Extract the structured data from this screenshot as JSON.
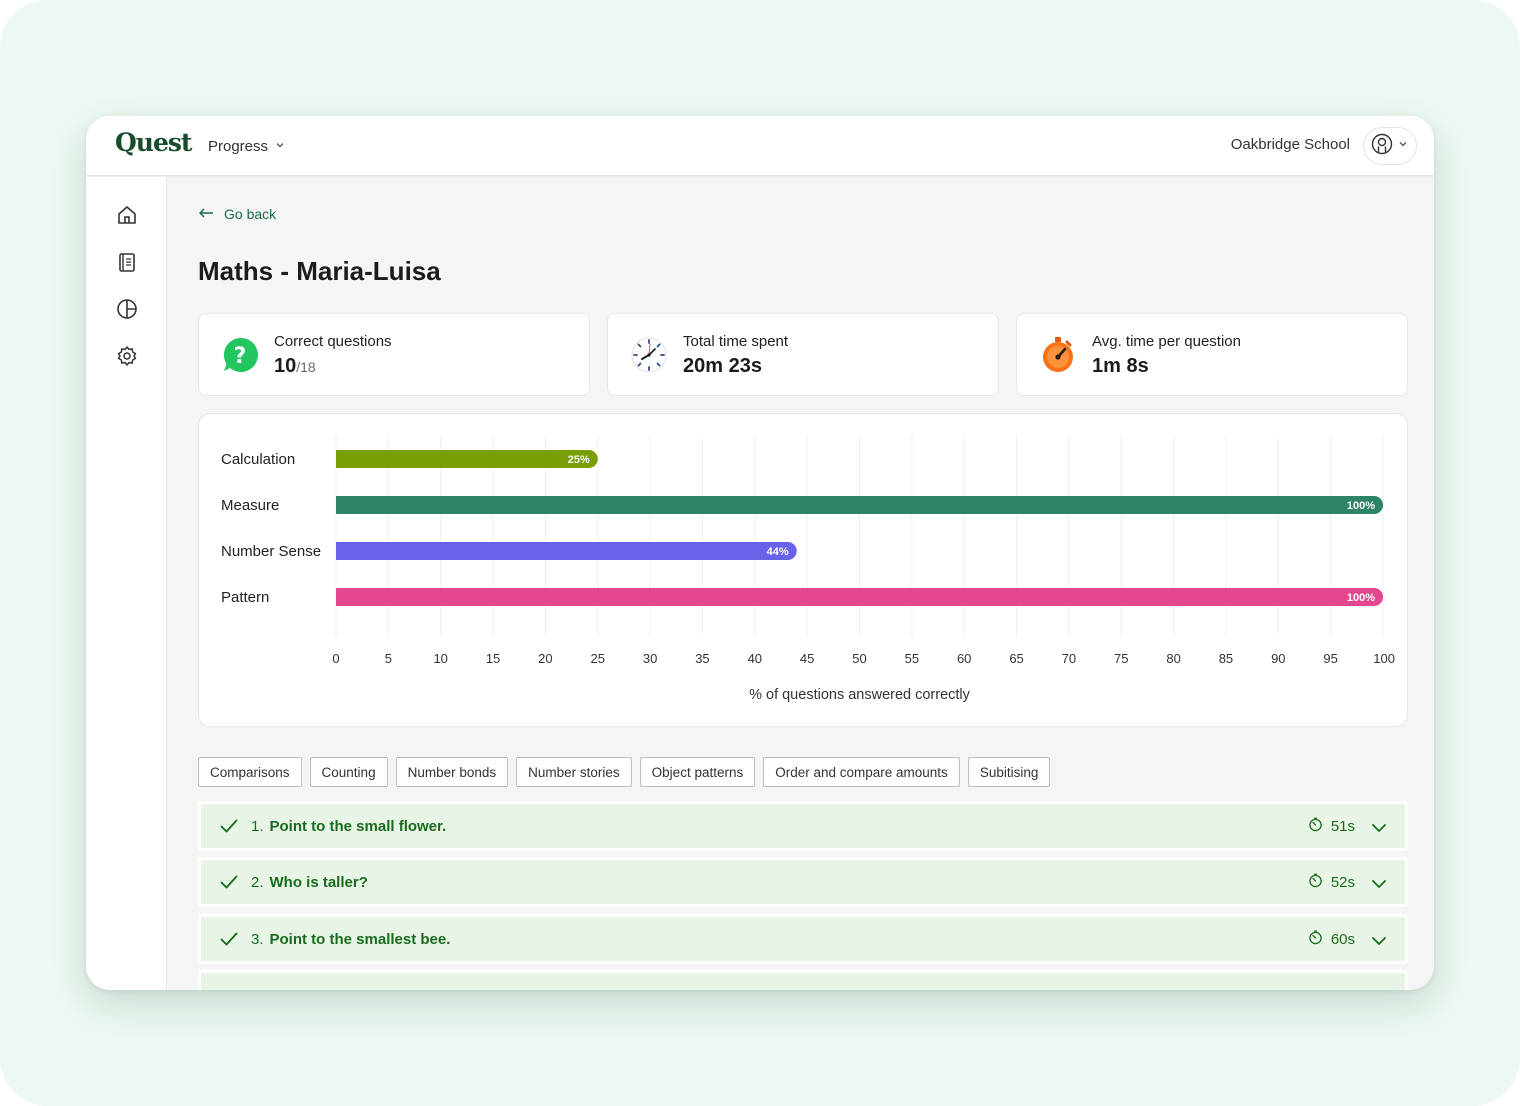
{
  "app": {
    "logo": "Quest",
    "nav_label": "Progress",
    "school": "Oakbridge School"
  },
  "page": {
    "back_label": "Go back",
    "title": "Maths - Maria-Luisa"
  },
  "stats": [
    {
      "label": "Correct questions",
      "value": "10",
      "sub": "/18",
      "icon": "question-bubble-icon"
    },
    {
      "label": "Total time spent",
      "value": "20m 23s",
      "icon": "clock-icon"
    },
    {
      "label": "Avg. time per question",
      "value": "1m 8s",
      "icon": "stopwatch-icon"
    }
  ],
  "chart_data": {
    "type": "bar",
    "orientation": "horizontal",
    "categories": [
      "Calculation",
      "Measure",
      "Number Sense",
      "Pattern"
    ],
    "values": [
      25,
      100,
      44,
      100
    ],
    "value_labels": [
      "25%",
      "100%",
      "44%",
      "100%"
    ],
    "colors": [
      "#7a9e05",
      "#2e8466",
      "#6862e9",
      "#e5478f"
    ],
    "xlabel": "% of questions answered correctly",
    "xlim": [
      0,
      100
    ],
    "xticks": [
      0,
      5,
      10,
      15,
      20,
      25,
      30,
      35,
      40,
      45,
      50,
      55,
      60,
      65,
      70,
      75,
      80,
      85,
      90,
      95,
      100
    ],
    "grid": true
  },
  "filters": [
    "Comparisons",
    "Counting",
    "Number bonds",
    "Number stories",
    "Object patterns",
    "Order and compare amounts",
    "Subitising"
  ],
  "questions": [
    {
      "num": "1.",
      "text": "Point to the small flower.",
      "time": "51s",
      "correct": true
    },
    {
      "num": "2.",
      "text": "Who is taller?",
      "time": "52s",
      "correct": true
    },
    {
      "num": "3.",
      "text": "Point to the smallest bee.",
      "time": "60s",
      "correct": true
    }
  ],
  "colors": {
    "brand": "#174d2d",
    "correct_text": "#196b1e",
    "correct_bg": "#e8f5e6",
    "outer_bg": "#ecf8f1"
  }
}
